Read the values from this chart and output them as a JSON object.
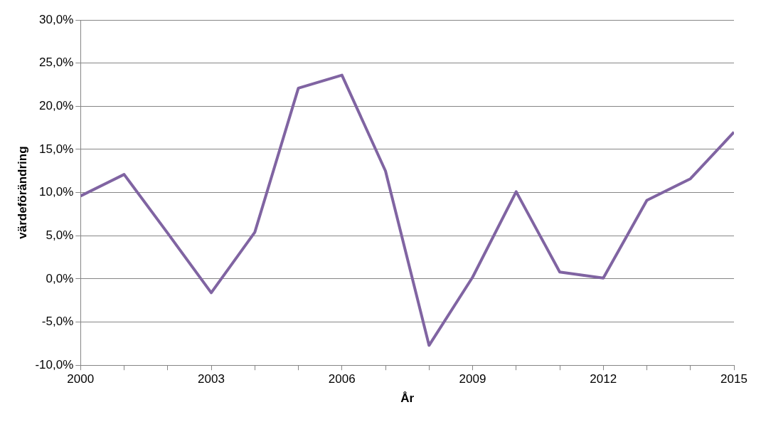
{
  "chart_data": {
    "type": "line",
    "xlabel": "År",
    "ylabel": "värdeförändring",
    "x": [
      2000,
      2001,
      2002,
      2003,
      2004,
      2005,
      2006,
      2007,
      2008,
      2009,
      2010,
      2011,
      2012,
      2013,
      2014,
      2015
    ],
    "series": [
      {
        "color": "#8064a2",
        "values": [
          9.6,
          12.1,
          5.3,
          -1.6,
          5.4,
          22.1,
          23.6,
          12.5,
          -7.7,
          0.2,
          10.1,
          0.8,
          0.1,
          9.1,
          11.6,
          17.0
        ]
      }
    ],
    "xlim": [
      2000,
      2015
    ],
    "xticks": [
      2000,
      {
        "value": 2001,
        "label": null
      },
      {
        "value": 2002,
        "label": null
      },
      2003,
      {
        "value": 2004,
        "label": null
      },
      {
        "value": 2005,
        "label": null
      },
      2006,
      {
        "value": 2007,
        "label": null
      },
      {
        "value": 2008,
        "label": null
      },
      2009,
      {
        "value": 2010,
        "label": null
      },
      {
        "value": 2011,
        "label": null
      },
      2012,
      {
        "value": 2013,
        "label": null
      },
      {
        "value": 2014,
        "label": null
      },
      2015
    ],
    "ylim": [
      -10,
      30
    ],
    "yticks": [
      {
        "value": -10,
        "label": "-10,0%"
      },
      {
        "value": -5,
        "label": "-5,0%"
      },
      {
        "value": 0,
        "label": "0,0%"
      },
      {
        "value": 5,
        "label": "5,0%"
      },
      {
        "value": 10,
        "label": "10,0%"
      },
      {
        "value": 15,
        "label": "15,0%"
      },
      {
        "value": 20,
        "label": "20,0%"
      },
      {
        "value": 25,
        "label": "25,0%"
      },
      {
        "value": 30,
        "label": "30,0%"
      }
    ],
    "grid": "y",
    "legend": false,
    "marker": "none",
    "line_style": "solid"
  }
}
